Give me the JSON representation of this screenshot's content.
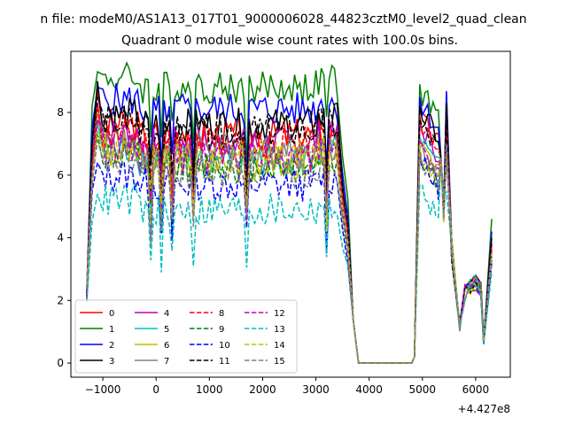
{
  "chart_data": {
    "type": "line",
    "suptitle": "n file: modeM0/AS1A13_017T01_9000006028_44823cztM0_level2_quad_clean",
    "title": "Quadrant 0 module wise count rates with 100.0s bins.",
    "xlabel": "",
    "ylabel": "",
    "x_offset_label": "+4.427e8",
    "xlim": [
      -1600,
      6650
    ],
    "ylim": [
      -0.45,
      9.95
    ],
    "xticks": [
      -1000,
      0,
      1000,
      2000,
      3000,
      4000,
      5000,
      6000
    ],
    "xtick_labels": [
      "−1000",
      "0",
      "1000",
      "2000",
      "3000",
      "4000",
      "5000",
      "6000"
    ],
    "yticks": [
      0,
      2,
      4,
      6,
      8
    ],
    "ytick_labels": [
      "0",
      "2",
      "4",
      "6",
      "8"
    ],
    "grid": false,
    "legend_position": "lower-left",
    "legend_columns": 4,
    "series": [
      {
        "name": "0",
        "color": "#ff0000",
        "dash": "solid",
        "level": 7.3,
        "peak": 8.7,
        "gap_level": 8.0,
        "tail": 3.6
      },
      {
        "name": "1",
        "color": "#008000",
        "dash": "solid",
        "level": 8.8,
        "peak": 9.3,
        "gap_level": 8.9,
        "tail": 4.6
      },
      {
        "name": "2",
        "color": "#0000ff",
        "dash": "solid",
        "level": 8.1,
        "peak": 8.8,
        "gap_level": 8.5,
        "tail": 4.2
      },
      {
        "name": "3",
        "color": "#000000",
        "dash": "solid",
        "level": 7.6,
        "peak": 9.0,
        "gap_level": 8.2,
        "tail": 4.0
      },
      {
        "name": "4",
        "color": "#bf00bf",
        "dash": "solid",
        "level": 7.0,
        "peak": 8.3,
        "gap_level": 7.7,
        "tail": 3.8
      },
      {
        "name": "5",
        "color": "#00bfbf",
        "dash": "solid",
        "level": 6.5,
        "peak": 7.7,
        "gap_level": 7.2,
        "tail": 3.5
      },
      {
        "name": "6",
        "color": "#bfbf00",
        "dash": "solid",
        "level": 6.4,
        "peak": 8.1,
        "gap_level": 7.1,
        "tail": 3.5
      },
      {
        "name": "7",
        "color": "#808080",
        "dash": "solid",
        "level": 6.8,
        "peak": 7.7,
        "gap_level": 6.9,
        "tail": 3.3
      },
      {
        "name": "8",
        "color": "#ff0000",
        "dash": "dashed",
        "level": 7.0,
        "peak": 8.2,
        "gap_level": 7.9,
        "tail": 3.7
      },
      {
        "name": "9",
        "color": "#008000",
        "dash": "dashed",
        "level": 6.3,
        "peak": 7.3,
        "gap_level": 6.8,
        "tail": 3.4
      },
      {
        "name": "10",
        "color": "#0000ff",
        "dash": "dashed",
        "level": 5.7,
        "peak": 6.4,
        "gap_level": 6.6,
        "tail": 3.2
      },
      {
        "name": "11",
        "color": "#000000",
        "dash": "dashed",
        "level": 7.4,
        "peak": 8.5,
        "gap_level": 7.8,
        "tail": 3.9
      },
      {
        "name": "12",
        "color": "#bf00bf",
        "dash": "dashed",
        "level": 6.6,
        "peak": 7.8,
        "gap_level": 7.1,
        "tail": 3.6
      },
      {
        "name": "13",
        "color": "#00bfbf",
        "dash": "dashed",
        "level": 4.9,
        "peak": 5.4,
        "gap_level": 5.7,
        "tail": 2.9
      },
      {
        "name": "14",
        "color": "#bfbf00",
        "dash": "dashed",
        "level": 6.6,
        "peak": 7.4,
        "gap_level": 7.0,
        "tail": 3.5
      },
      {
        "name": "15",
        "color": "#808080",
        "dash": "dashed",
        "level": 6.1,
        "peak": 7.1,
        "gap_level": 6.8,
        "tail": 3.3
      }
    ]
  }
}
